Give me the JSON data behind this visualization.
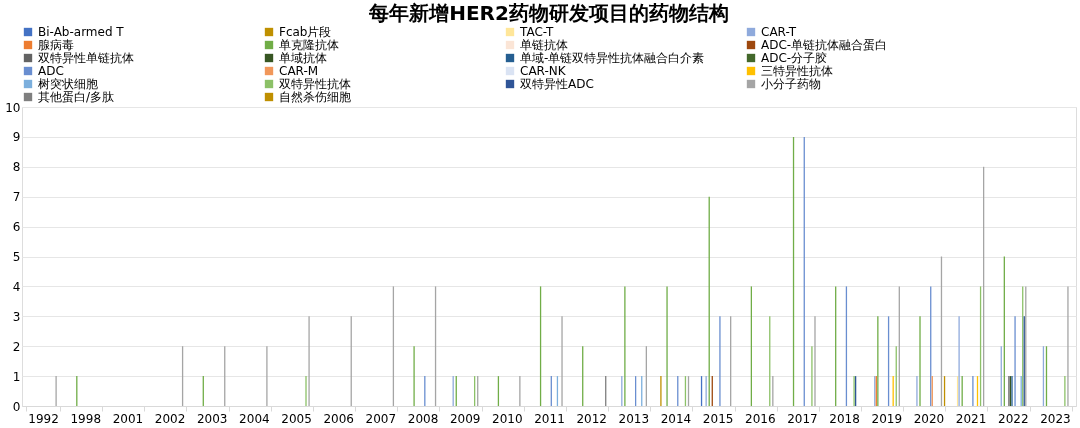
{
  "chart_data": {
    "type": "bar",
    "title": "每年新增HER2药物研发项目的药物结构",
    "categories": [
      "1992",
      "1998",
      "2001",
      "2002",
      "2003",
      "2004",
      "2005",
      "2006",
      "2007",
      "2008",
      "2009",
      "2010",
      "2011",
      "2012",
      "2013",
      "2014",
      "2015",
      "2016",
      "2017",
      "2018",
      "2019",
      "2020",
      "2021",
      "2022",
      "2023"
    ],
    "series": [
      {
        "name": "Bi-Ab-armed T",
        "color": "#4472c4",
        "values": [
          0,
          0,
          0,
          0,
          0,
          0,
          0,
          0,
          0,
          0,
          0,
          0,
          0,
          0,
          0,
          0,
          1,
          0,
          0,
          0,
          0,
          0,
          0,
          0,
          0
        ]
      },
      {
        "name": "Fcab片段",
        "color": "#bf9000",
        "values": [
          0,
          0,
          0,
          0,
          0,
          0,
          0,
          0,
          0,
          0,
          0,
          0,
          0,
          0,
          0,
          1,
          0,
          0,
          0,
          0,
          0,
          0,
          0,
          0,
          0
        ]
      },
      {
        "name": "TAC-T",
        "color": "#ffe699",
        "values": [
          0,
          0,
          0,
          0,
          0,
          0,
          0,
          0,
          0,
          0,
          0,
          0,
          0,
          0,
          0,
          0,
          0,
          0,
          0,
          0,
          0,
          0,
          1,
          0,
          0
        ]
      },
      {
        "name": "CAR-T",
        "color": "#8faadc",
        "values": [
          0,
          0,
          0,
          0,
          0,
          0,
          0,
          0,
          0,
          0,
          1,
          0,
          0,
          0,
          1,
          0,
          1,
          0,
          0,
          0,
          1,
          1,
          3,
          2,
          2
        ]
      },
      {
        "name": "腺病毒",
        "color": "#ed7d31",
        "values": [
          0,
          0,
          0,
          0,
          0,
          0,
          0,
          0,
          0,
          0,
          0,
          0,
          0,
          0,
          0,
          0,
          0,
          0,
          0,
          0,
          1,
          0,
          0,
          0,
          0
        ]
      },
      {
        "name": "单克隆抗体",
        "color": "#70ad47",
        "values": [
          0,
          1,
          0,
          0,
          1,
          0,
          0,
          0,
          0,
          2,
          1,
          1,
          4,
          2,
          4,
          4,
          7,
          4,
          9,
          4,
          3,
          3,
          1,
          5,
          2
        ]
      },
      {
        "name": "单链抗体",
        "color": "#fbe5d6",
        "values": [
          0,
          0,
          0,
          0,
          0,
          0,
          0,
          0,
          0,
          0,
          0,
          0,
          0,
          0,
          0,
          0,
          0,
          0,
          0,
          0,
          0,
          0,
          0,
          0,
          0
        ]
      },
      {
        "name": "ADC-单链抗体融合蛋白",
        "color": "#9e480e",
        "values": [
          0,
          0,
          0,
          0,
          0,
          0,
          0,
          0,
          0,
          0,
          0,
          0,
          0,
          0,
          0,
          0,
          1,
          0,
          0,
          0,
          0,
          0,
          0,
          0,
          0
        ]
      },
      {
        "name": "双特异性单链抗体",
        "color": "#636363",
        "values": [
          0,
          0,
          0,
          0,
          0,
          0,
          0,
          0,
          0,
          0,
          0,
          0,
          0,
          0,
          0,
          0,
          0,
          0,
          0,
          0,
          0,
          0,
          0,
          1,
          0
        ]
      },
      {
        "name": "单域抗体",
        "color": "#375623",
        "values": [
          0,
          0,
          0,
          0,
          0,
          0,
          0,
          0,
          0,
          0,
          0,
          0,
          0,
          0,
          0,
          0,
          0,
          0,
          0,
          0,
          0,
          0,
          0,
          1,
          0
        ]
      },
      {
        "name": "单域-单链双特异性抗体融合白介素",
        "color": "#255e91",
        "values": [
          0,
          0,
          0,
          0,
          0,
          0,
          0,
          0,
          0,
          0,
          0,
          0,
          0,
          0,
          0,
          0,
          0,
          0,
          0,
          0,
          0,
          0,
          0,
          1,
          0
        ]
      },
      {
        "name": "ADC-分子胶",
        "color": "#43682b",
        "values": [
          0,
          0,
          0,
          0,
          0,
          0,
          0,
          0,
          0,
          0,
          0,
          0,
          0,
          0,
          0,
          0,
          0,
          0,
          0,
          0,
          0,
          0,
          0,
          0,
          0
        ]
      },
      {
        "name": "ADC",
        "color": "#698ed0",
        "values": [
          0,
          0,
          0,
          0,
          0,
          0,
          0,
          0,
          0,
          1,
          0,
          0,
          1,
          0,
          1,
          1,
          3,
          0,
          9,
          4,
          3,
          4,
          1,
          3,
          0
        ]
      },
      {
        "name": "CAR-M",
        "color": "#f1975a",
        "values": [
          0,
          0,
          0,
          0,
          0,
          0,
          0,
          0,
          0,
          0,
          0,
          0,
          0,
          0,
          0,
          0,
          0,
          0,
          0,
          0,
          0,
          1,
          0,
          0,
          0
        ]
      },
      {
        "name": "CAR-NK",
        "color": "#dae3f3",
        "values": [
          0,
          0,
          0,
          0,
          0,
          0,
          0,
          0,
          0,
          0,
          0,
          0,
          0,
          0,
          0,
          0,
          0,
          0,
          0,
          0,
          0,
          0,
          0,
          0,
          0
        ]
      },
      {
        "name": "三特异性抗体",
        "color": "#ffc000",
        "values": [
          0,
          0,
          0,
          0,
          0,
          0,
          0,
          0,
          0,
          0,
          0,
          0,
          0,
          0,
          0,
          0,
          0,
          0,
          0,
          0,
          1,
          0,
          1,
          0,
          0
        ]
      },
      {
        "name": "树突状细胞",
        "color": "#7cafdd",
        "values": [
          0,
          0,
          0,
          0,
          0,
          0,
          0,
          0,
          0,
          0,
          0,
          0,
          1,
          0,
          1,
          0,
          0,
          0,
          0,
          0,
          0,
          0,
          0,
          1,
          0
        ]
      },
      {
        "name": "双特异性抗体",
        "color": "#8cc168",
        "values": [
          0,
          0,
          0,
          0,
          0,
          0,
          1,
          0,
          0,
          0,
          1,
          0,
          0,
          0,
          0,
          1,
          0,
          3,
          2,
          1,
          2,
          0,
          4,
          4,
          1
        ]
      },
      {
        "name": "双特异性ADC",
        "color": "#2f5597",
        "values": [
          0,
          0,
          0,
          0,
          0,
          0,
          0,
          0,
          0,
          0,
          0,
          0,
          0,
          0,
          0,
          0,
          0,
          0,
          0,
          1,
          0,
          0,
          0,
          3,
          0
        ]
      },
      {
        "name": "小分子药物",
        "color": "#a5a5a5",
        "values": [
          1,
          0,
          0,
          2,
          2,
          2,
          3,
          3,
          4,
          4,
          1,
          1,
          3,
          0,
          2,
          1,
          3,
          1,
          3,
          0,
          4,
          5,
          8,
          4,
          4
        ]
      },
      {
        "name": "其他蛋白/多肽",
        "color": "#7f7f7f",
        "values": [
          0,
          0,
          0,
          0,
          0,
          0,
          0,
          0,
          0,
          0,
          0,
          0,
          0,
          1,
          0,
          0,
          0,
          0,
          0,
          0,
          0,
          0,
          0,
          0,
          0
        ]
      },
      {
        "name": "自然杀伤细胞",
        "color": "#bf8f00",
        "values": [
          0,
          0,
          0,
          0,
          0,
          0,
          0,
          0,
          0,
          0,
          0,
          0,
          0,
          0,
          0,
          0,
          0,
          0,
          0,
          0,
          0,
          1,
          0,
          0,
          0
        ]
      }
    ],
    "ylim": [
      0,
      10
    ],
    "yticks": [
      0,
      1,
      2,
      3,
      4,
      5,
      6,
      7,
      8,
      9,
      10
    ],
    "grid": "y",
    "legend": "top"
  }
}
